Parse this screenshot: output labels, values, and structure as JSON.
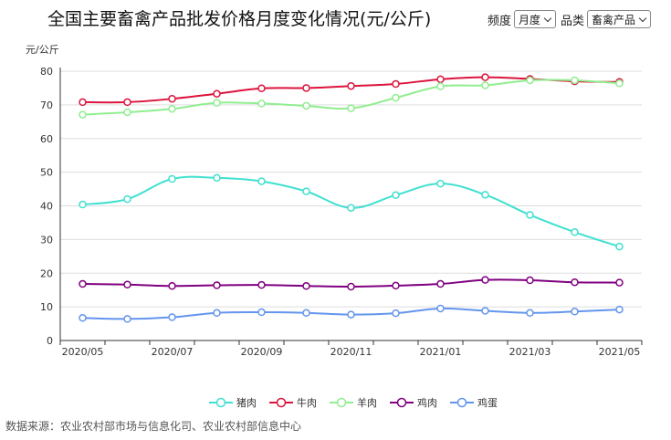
{
  "header": {
    "title": "全国主要畜禽产品批发价格月度变化情况(元/公斤)",
    "frequency_label": "频度",
    "frequency_value": "月度",
    "category_label": "品类",
    "category_value": "畜禽产品"
  },
  "source_text": "数据来源：农业农村部市场与信息化司、农业农村部信息中心",
  "chart_data": {
    "type": "line",
    "ylabel": "元/公斤",
    "ylim": [
      0,
      80
    ],
    "yticks": [
      0,
      10,
      20,
      30,
      40,
      50,
      60,
      70,
      80
    ],
    "x": [
      "2020/05",
      "2020/06",
      "2020/07",
      "2020/08",
      "2020/09",
      "2020/10",
      "2020/11",
      "2020/12",
      "2021/01",
      "2021/02",
      "2021/03",
      "2021/04",
      "2021/05"
    ],
    "xtick_labels": [
      "2020/05",
      "2020/07",
      "2020/09",
      "2020/11",
      "2021/01",
      "2021/03",
      "2021/05"
    ],
    "grid": true,
    "legend_position": "bottom",
    "series": [
      {
        "name": "猪肉",
        "color": "#40e0d0",
        "values": [
          40.4,
          42.0,
          48.0,
          48.3,
          47.3,
          44.3,
          39.4,
          43.2,
          46.6,
          43.3,
          37.3,
          32.2,
          27.9
        ]
      },
      {
        "name": "牛肉",
        "color": "#dc143c",
        "values": [
          70.8,
          70.8,
          71.8,
          73.3,
          74.9,
          75.0,
          75.6,
          76.2,
          77.6,
          78.2,
          77.7,
          77.0,
          76.8
        ]
      },
      {
        "name": "羊肉",
        "color": "#90ee90",
        "values": [
          67.1,
          67.8,
          68.8,
          70.6,
          70.4,
          69.7,
          69.0,
          72.1,
          75.5,
          75.8,
          77.3,
          77.3,
          76.4
        ]
      },
      {
        "name": "鸡肉",
        "color": "#800080",
        "values": [
          16.8,
          16.6,
          16.2,
          16.4,
          16.5,
          16.2,
          16.0,
          16.3,
          16.8,
          18.0,
          17.9,
          17.3,
          17.2
        ]
      },
      {
        "name": "鸡蛋",
        "color": "#6495ed",
        "values": [
          6.7,
          6.4,
          6.9,
          8.2,
          8.4,
          8.2,
          7.7,
          8.1,
          9.5,
          8.8,
          8.2,
          8.6,
          9.2
        ]
      }
    ]
  }
}
